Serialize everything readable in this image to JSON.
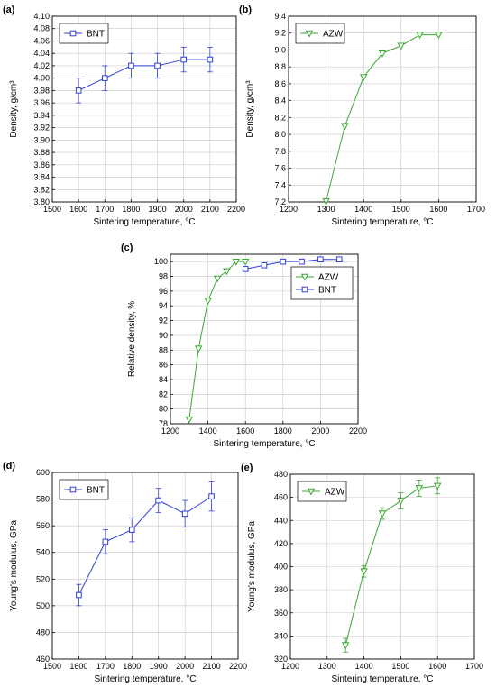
{
  "colors": {
    "BNT": "#2f3fd6",
    "AZW": "#3aa832"
  },
  "chart_data": [
    {
      "panel": "(a)",
      "type": "line",
      "xlabel": "Sintering temperature, °C",
      "ylabel": "Density, g/cm³",
      "xlim": [
        1500,
        2200
      ],
      "xticks": [
        1500,
        1600,
        1700,
        1800,
        1900,
        2000,
        2100,
        2200
      ],
      "ylim": [
        3.8,
        4.1
      ],
      "yticks": [
        3.8,
        3.82,
        3.84,
        3.86,
        3.88,
        3.9,
        3.92,
        3.94,
        3.96,
        3.98,
        4.0,
        4.02,
        4.04,
        4.06,
        4.08,
        4.1
      ],
      "ytick_decimals": 2,
      "grid": true,
      "legend": "top-left",
      "series": [
        {
          "name": "BNT",
          "marker": "square",
          "color_key": "BNT",
          "x": [
            1600,
            1700,
            1800,
            1900,
            2000,
            2100
          ],
          "y": [
            3.98,
            4.0,
            4.02,
            4.02,
            4.03,
            4.03
          ],
          "err": [
            0.02,
            0.02,
            0.02,
            0.02,
            0.02,
            0.02
          ]
        }
      ]
    },
    {
      "panel": "(b)",
      "type": "line",
      "xlabel": "Sintering temperature, °C",
      "ylabel": "Density, g/cm³",
      "xlim": [
        1200,
        1700
      ],
      "xticks": [
        1200,
        1300,
        1400,
        1500,
        1600,
        1700
      ],
      "ylim": [
        7.2,
        9.4
      ],
      "yticks": [
        7.2,
        7.4,
        7.6,
        7.8,
        8.0,
        8.2,
        8.4,
        8.6,
        8.8,
        9.0,
        9.2,
        9.4
      ],
      "ytick_decimals": 1,
      "grid": true,
      "legend": "top-left",
      "series": [
        {
          "name": "AZW",
          "marker": "triangle-down",
          "color_key": "AZW",
          "x": [
            1300,
            1350,
            1400,
            1450,
            1500,
            1550,
            1600
          ],
          "y": [
            7.21,
            8.1,
            8.68,
            8.96,
            9.05,
            9.18,
            9.18
          ]
        }
      ]
    },
    {
      "panel": "(c)",
      "type": "line",
      "xlabel": "Sintering temperature, °C",
      "ylabel": "Relative density, %",
      "xlim": [
        1200,
        2200
      ],
      "xticks": [
        1200,
        1400,
        1600,
        1800,
        2000,
        2200
      ],
      "ylim": [
        78,
        101
      ],
      "yticks": [
        78,
        80,
        82,
        84,
        86,
        88,
        90,
        92,
        94,
        96,
        98,
        100
      ],
      "ytick_decimals": 0,
      "grid": true,
      "legend": "right",
      "series": [
        {
          "name": "AZW",
          "marker": "triangle-down",
          "color_key": "AZW",
          "x": [
            1300,
            1350,
            1400,
            1450,
            1500,
            1550,
            1600
          ],
          "y": [
            78.6,
            88.2,
            94.7,
            97.7,
            98.7,
            100.0,
            100.0
          ]
        },
        {
          "name": "BNT",
          "marker": "square",
          "color_key": "BNT",
          "x": [
            1600,
            1700,
            1800,
            1900,
            2000,
            2100
          ],
          "y": [
            99.0,
            99.5,
            100.0,
            100.0,
            100.3,
            100.3
          ]
        }
      ]
    },
    {
      "panel": "(d)",
      "type": "line",
      "xlabel": "Sintering temperature, °C",
      "ylabel": "Young's modulus, GPa",
      "xlim": [
        1500,
        2200
      ],
      "xticks": [
        1500,
        1600,
        1700,
        1800,
        1900,
        2000,
        2100,
        2200
      ],
      "ylim": [
        460,
        600
      ],
      "yticks": [
        460,
        480,
        500,
        520,
        540,
        560,
        580,
        600
      ],
      "ytick_decimals": 0,
      "grid": true,
      "legend": "top-left",
      "series": [
        {
          "name": "BNT",
          "marker": "square",
          "color_key": "BNT",
          "x": [
            1600,
            1700,
            1800,
            1900,
            2000,
            2100
          ],
          "y": [
            508,
            548,
            557,
            579,
            569,
            582
          ],
          "err": [
            8,
            9,
            9,
            9,
            10,
            11
          ]
        }
      ]
    },
    {
      "panel": "(e)",
      "type": "line",
      "xlabel": "Sintering temperature, °C",
      "ylabel": "Young's modulus, GPa",
      "xlim": [
        1200,
        1700
      ],
      "xticks": [
        1200,
        1300,
        1400,
        1500,
        1600,
        1700
      ],
      "ylim": [
        320,
        480
      ],
      "yticks": [
        320,
        340,
        360,
        380,
        400,
        420,
        440,
        460,
        480
      ],
      "ytick_decimals": 0,
      "grid": true,
      "legend": "top-left",
      "series": [
        {
          "name": "AZW",
          "marker": "triangle-down",
          "color_key": "AZW",
          "x": [
            1350,
            1400,
            1450,
            1500,
            1550,
            1600
          ],
          "y": [
            332,
            396,
            446,
            457,
            468,
            470
          ],
          "err": [
            6,
            5,
            5,
            7,
            7,
            7
          ]
        }
      ]
    }
  ]
}
